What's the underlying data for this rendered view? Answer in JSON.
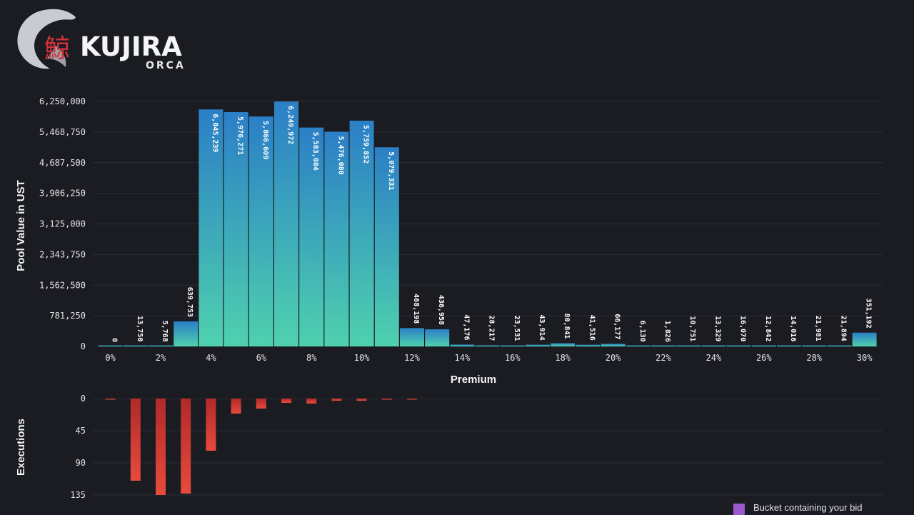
{
  "brand": {
    "kanji": "鯨",
    "name": "KUJIRA",
    "product": "ORCA"
  },
  "legend": {
    "label": "Bucket containing your bid",
    "color": "#9b59d0"
  },
  "colors": {
    "bar_top": "#2b7fc6",
    "bar_bottom": "#4fd1ae",
    "execution_top": "#b02a2a",
    "execution_bottom": "#e84a3c",
    "grid": "#2c2e36"
  },
  "chart_data": [
    {
      "type": "bar",
      "xlabel": "Premium",
      "ylabel": "Pool Value in UST",
      "ylim": [
        0,
        6250000
      ],
      "y_ticks": [
        "0",
        "781,250",
        "1,562,500",
        "2,343,750",
        "3,125,000",
        "3,906,250",
        "4,687,500",
        "5,468,750",
        "6,250,000"
      ],
      "categories": [
        "0%",
        "1%",
        "2%",
        "3%",
        "4%",
        "5%",
        "6%",
        "7%",
        "8%",
        "9%",
        "10%",
        "11%",
        "12%",
        "13%",
        "14%",
        "15%",
        "16%",
        "17%",
        "18%",
        "19%",
        "20%",
        "21%",
        "22%",
        "23%",
        "24%",
        "25%",
        "26%",
        "27%",
        "28%",
        "29%",
        "30%"
      ],
      "x_tick_labels": [
        "0%",
        "2%",
        "4%",
        "6%",
        "8%",
        "10%",
        "12%",
        "14%",
        "16%",
        "18%",
        "20%",
        "22%",
        "24%",
        "26%",
        "28%",
        "30%"
      ],
      "values": [
        0,
        13750,
        5768,
        639753,
        6045239,
        5976271,
        5866609,
        6249972,
        5583084,
        5476080,
        5759852,
        5079331,
        468198,
        436958,
        47176,
        28217,
        23531,
        43914,
        80841,
        41516,
        66177,
        6130,
        1826,
        10751,
        13329,
        16070,
        12842,
        14016,
        21981,
        21894,
        351192
      ],
      "data_labels": [
        "0",
        "13,750",
        "5,768",
        "639,753",
        "6,045,239",
        "5,976,271",
        "5,866,609",
        "6,249,972",
        "5,583,084",
        "5,476,080",
        "5,759,852",
        "5,079,331",
        "468,198",
        "436,958",
        "47,176",
        "28,217",
        "23,531",
        "43,914",
        "80,841",
        "41,516",
        "66,177",
        "6,130",
        "1,826",
        "10,751",
        "13,329",
        "16,070",
        "12,842",
        "14,016",
        "21,981",
        "21,894",
        "351,192"
      ],
      "grid": true
    },
    {
      "type": "bar",
      "ylabel": "Executions",
      "orientation": "downward",
      "y_ticks": [
        "0",
        "45",
        "90",
        "135"
      ],
      "ylim": [
        0,
        135
      ],
      "categories": [
        "0%",
        "1%",
        "2%",
        "3%",
        "4%",
        "5%",
        "6%",
        "7%",
        "8%",
        "9%",
        "10%",
        "11%",
        "12%"
      ],
      "values": [
        1,
        115,
        135,
        133,
        73,
        21,
        14,
        6,
        7,
        3,
        3,
        1,
        1
      ],
      "grid": true
    }
  ]
}
